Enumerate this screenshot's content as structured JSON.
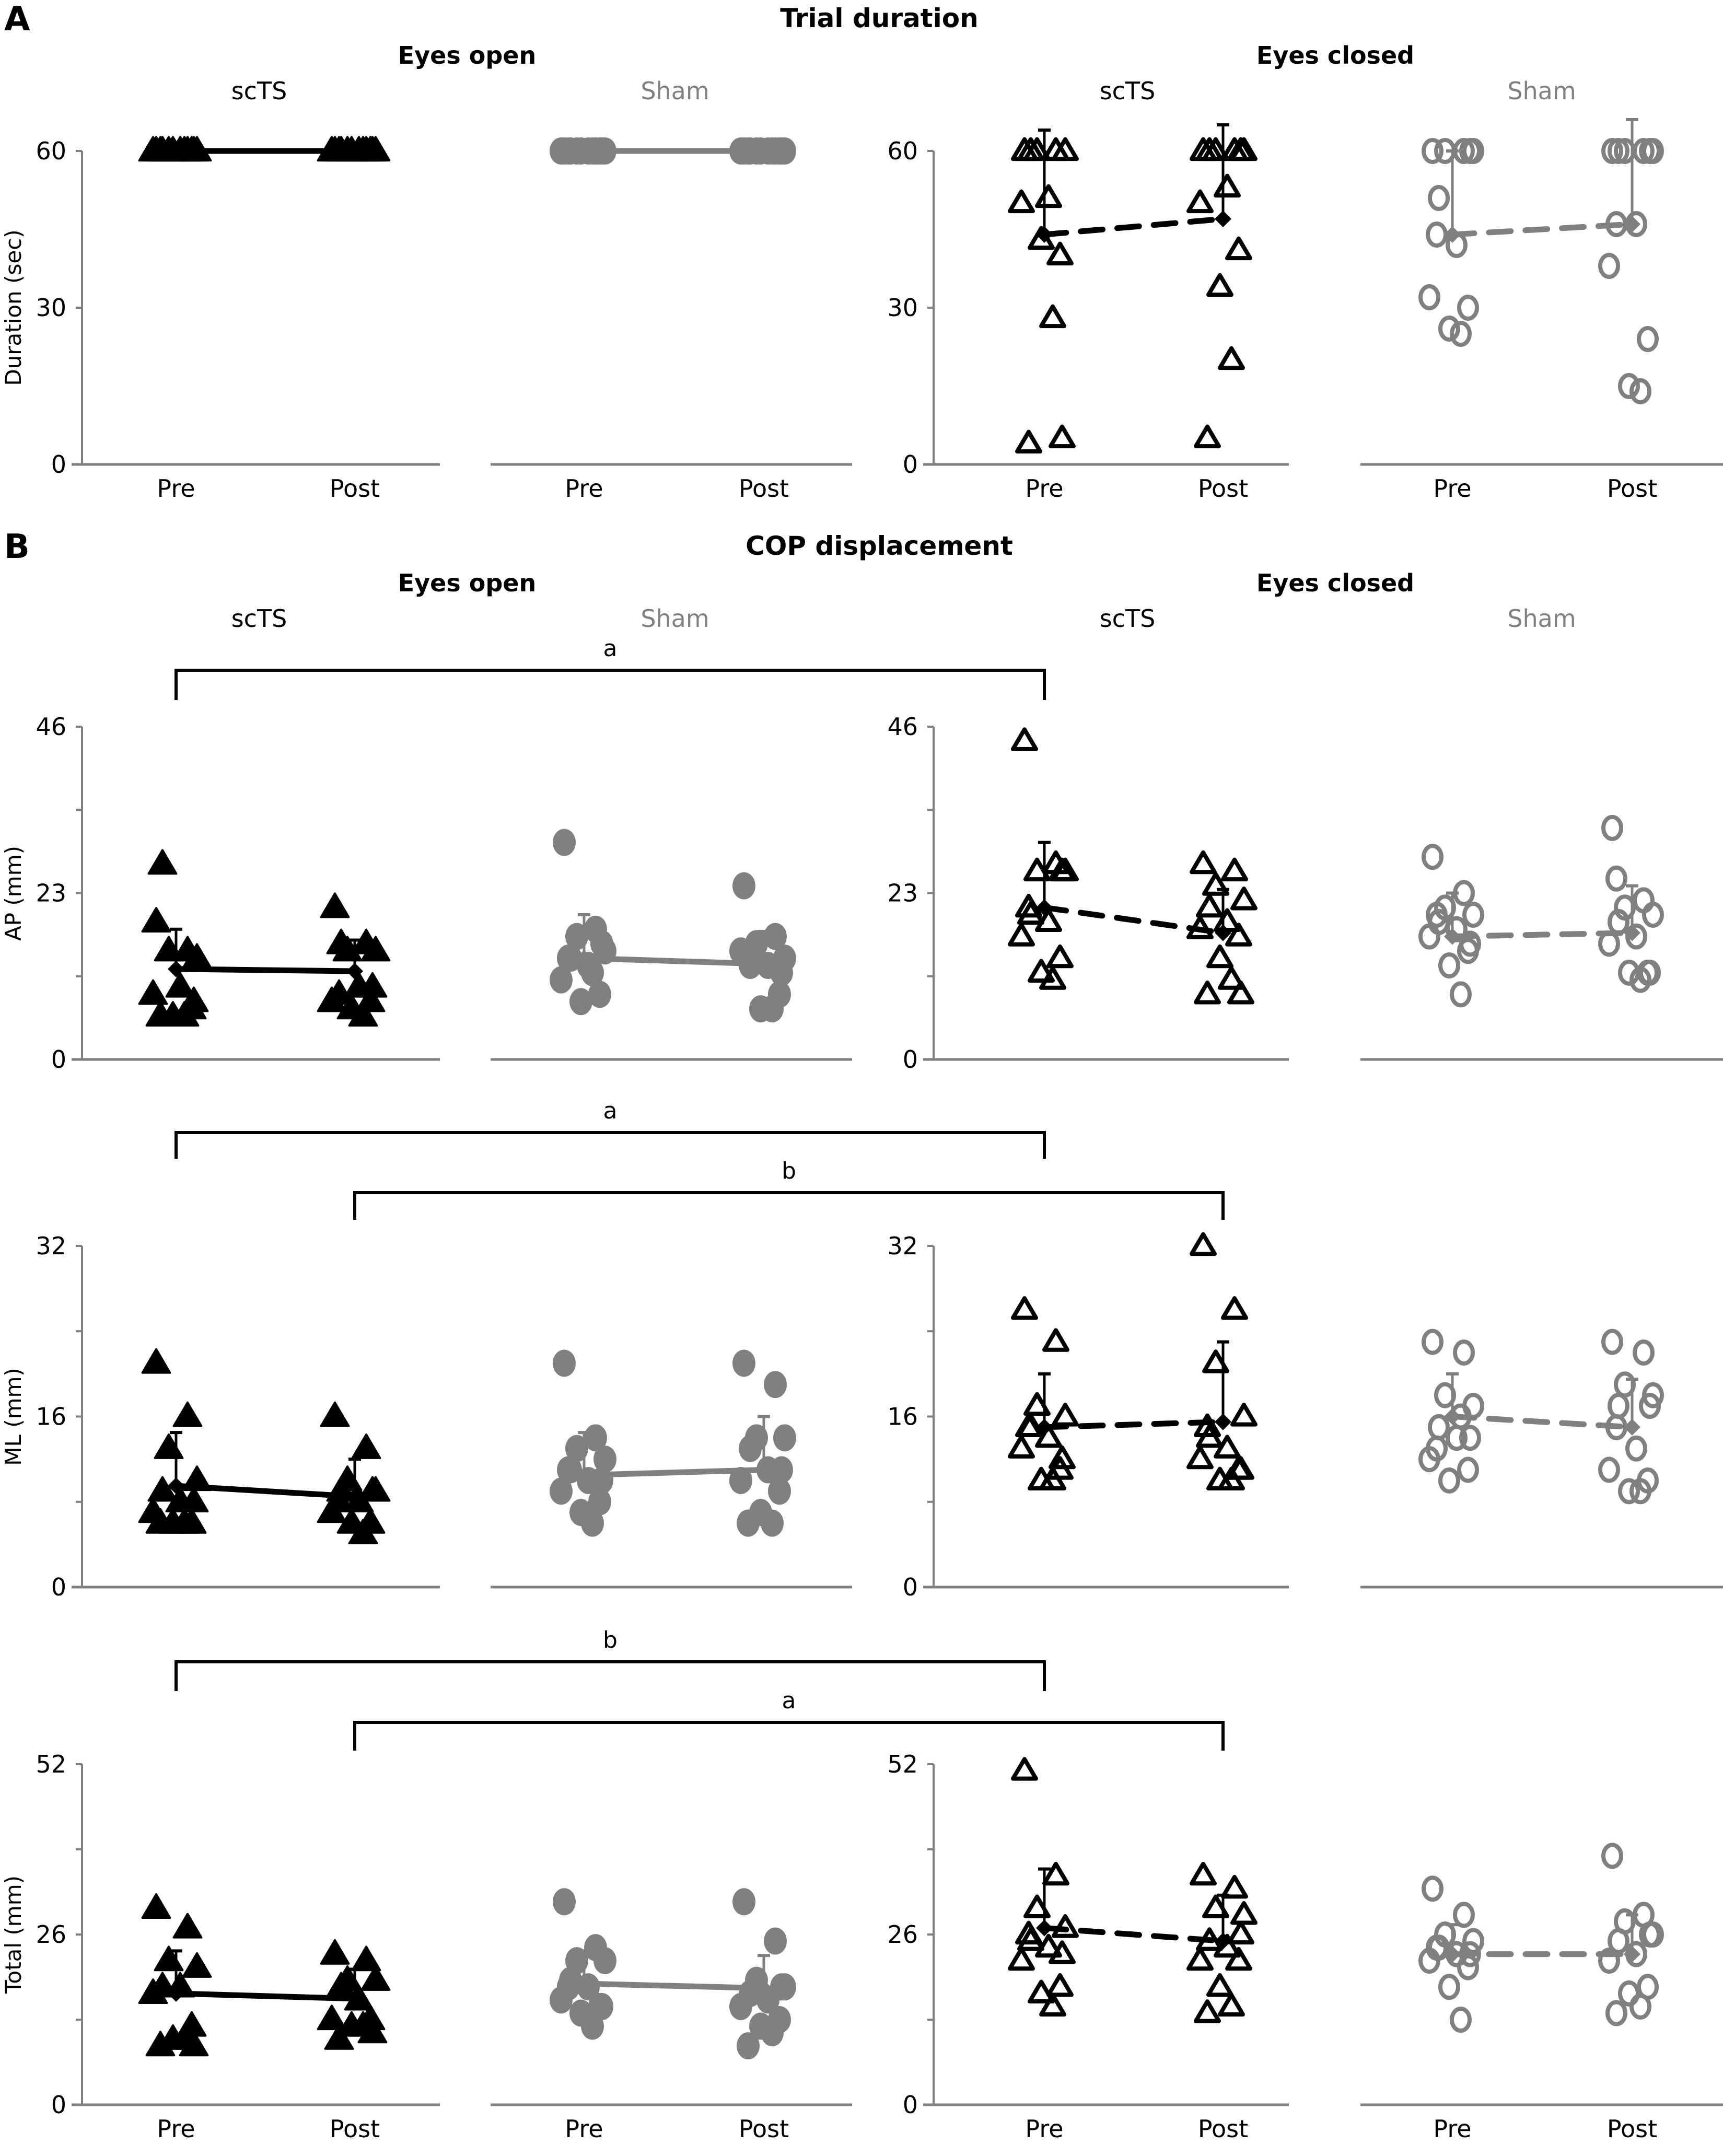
{
  "figure": {
    "panel_A_letter": "A",
    "panel_B_letter": "B",
    "panel_A_title": "Trial duration",
    "panel_B_title": "COP displacement",
    "conditions": [
      "Eyes open",
      "Eyes closed"
    ],
    "groups": [
      "scTS",
      "Sham",
      "scTS",
      "Sham"
    ],
    "colors": {
      "scTS": "#000000",
      "Sham": "#808080",
      "axis": "#808080"
    }
  },
  "chart_data": [
    {
      "id": "duration",
      "type": "scatter",
      "title": "Trial duration",
      "ylabel": "Duration (sec)",
      "ylim": [
        0,
        60
      ],
      "yticks": [
        0,
        30,
        60
      ],
      "yticklabels": [
        "0",
        "30",
        "60"
      ],
      "categories": [
        "Pre",
        "Post"
      ],
      "panels": [
        {
          "condition": "Eyes open",
          "group": "scTS",
          "marker": "filled-triangle",
          "line": "solid",
          "pre": [
            60,
            60,
            60,
            60,
            60,
            60,
            60,
            60,
            60,
            60,
            60,
            60
          ],
          "post": [
            60,
            60,
            60,
            60,
            60,
            60,
            60,
            60,
            60,
            60,
            60,
            60
          ],
          "mean": [
            60,
            60
          ],
          "sd": [
            0,
            0
          ]
        },
        {
          "condition": "Eyes open",
          "group": "Sham",
          "marker": "filled-circle",
          "line": "solid",
          "pre": [
            60,
            60,
            60,
            60,
            60,
            60,
            60,
            60,
            60,
            60,
            60,
            60
          ],
          "post": [
            60,
            60,
            60,
            60,
            60,
            60,
            60,
            60,
            60,
            60,
            60,
            60
          ],
          "mean": [
            60,
            60
          ],
          "sd": [
            0,
            0
          ]
        },
        {
          "condition": "Eyes closed",
          "group": "scTS",
          "marker": "open-triangle",
          "line": "dashed",
          "pre": [
            60,
            60,
            60,
            60,
            60,
            51,
            50,
            40,
            43,
            28,
            4,
            5
          ],
          "post": [
            60,
            60,
            60,
            60,
            60,
            53,
            50,
            41,
            34,
            20,
            5,
            60
          ],
          "mean": [
            44,
            47
          ],
          "sd": [
            20,
            18
          ]
        },
        {
          "condition": "Eyes closed",
          "group": "Sham",
          "marker": "open-circle",
          "line": "dashed",
          "pre": [
            60,
            60,
            60,
            60,
            51,
            42,
            32,
            30,
            26,
            25,
            44,
            60
          ],
          "post": [
            60,
            60,
            60,
            60,
            60,
            46,
            38,
            24,
            15,
            14,
            46,
            60
          ],
          "mean": [
            44,
            46
          ],
          "sd": [
            16,
            20
          ]
        }
      ]
    },
    {
      "id": "ap",
      "type": "scatter",
      "title": "COP displacement",
      "ylabel": "AP (mm)",
      "ylim": [
        0,
        46
      ],
      "yticks": [
        0,
        11.5,
        23,
        34.5,
        46
      ],
      "yticklabels": [
        "0",
        "",
        "23",
        "",
        "46"
      ],
      "categories": [
        "Pre",
        "Post"
      ],
      "panels": [
        {
          "condition": "Eyes open",
          "group": "scTS",
          "marker": "filled-triangle",
          "line": "solid",
          "pre": [
            19,
            15,
            15,
            14,
            27,
            10,
            9,
            7,
            6,
            6,
            6,
            8
          ],
          "post": [
            21,
            16,
            15,
            15,
            16,
            10,
            8,
            8,
            7,
            6,
            9,
            10
          ],
          "mean": [
            12.5,
            12.2
          ],
          "sd": [
            5.5,
            4.3
          ]
        },
        {
          "condition": "Eyes open",
          "group": "Sham",
          "marker": "filled-circle",
          "line": "solid",
          "pre": [
            30,
            18,
            17,
            15,
            14,
            13,
            11,
            9,
            8,
            12,
            14,
            16
          ],
          "post": [
            24,
            17,
            16,
            14,
            13,
            13,
            15,
            9,
            7,
            7,
            14,
            12
          ],
          "mean": [
            14,
            13.2
          ],
          "sd": [
            6,
            4.5
          ]
        },
        {
          "condition": "Eyes closed",
          "group": "scTS",
          "marker": "open-triangle",
          "line": "dashed",
          "pre": [
            44,
            27,
            26,
            26,
            20,
            19,
            17,
            14,
            12,
            11,
            21,
            26
          ],
          "post": [
            27,
            26,
            24,
            22,
            21,
            19,
            18,
            17,
            14,
            11,
            9,
            9
          ],
          "mean": [
            21,
            17.5
          ],
          "sd": [
            9,
            6
          ]
        },
        {
          "condition": "Eyes closed",
          "group": "Sham",
          "marker": "open-circle",
          "line": "dashed",
          "pre": [
            28,
            23,
            21,
            20,
            19,
            18,
            17,
            15,
            13,
            9,
            20,
            16
          ],
          "post": [
            32,
            22,
            21,
            20,
            19,
            17,
            16,
            12,
            12,
            11,
            25,
            12
          ],
          "mean": [
            17,
            17.5
          ],
          "sd": [
            6,
            6.5
          ]
        }
      ],
      "significance": [
        {
          "label": "a",
          "from": "Eyes open scTS Pre",
          "to": "Eyes closed scTS Pre"
        }
      ]
    },
    {
      "id": "ml",
      "type": "scatter",
      "ylabel": "ML (mm)",
      "ylim": [
        0,
        32
      ],
      "yticks": [
        0,
        8,
        16,
        24,
        32
      ],
      "yticklabels": [
        "0",
        "",
        "16",
        "",
        "32"
      ],
      "categories": [
        "Pre",
        "Post"
      ],
      "panels": [
        {
          "condition": "Eyes open",
          "group": "scTS",
          "marker": "filled-triangle",
          "line": "solid",
          "pre": [
            21,
            16,
            13,
            10,
            9,
            8,
            7,
            6,
            6,
            6,
            6,
            8
          ],
          "post": [
            16,
            13,
            10,
            9,
            9,
            8,
            7,
            6,
            6,
            5,
            8,
            9
          ],
          "mean": [
            9.5,
            8.5
          ],
          "sd": [
            5,
            3.5
          ]
        },
        {
          "condition": "Eyes open",
          "group": "Sham",
          "marker": "filled-circle",
          "line": "solid",
          "pre": [
            21,
            14,
            13,
            12,
            11,
            10,
            9,
            8,
            7,
            6,
            11,
            10
          ],
          "post": [
            21,
            19,
            14,
            14,
            13,
            11,
            10,
            9,
            7,
            6,
            6,
            11
          ],
          "mean": [
            10.5,
            11
          ],
          "sd": [
            4,
            5
          ]
        },
        {
          "condition": "Eyes closed",
          "group": "scTS",
          "marker": "open-triangle",
          "line": "dashed",
          "pre": [
            26,
            23,
            17,
            16,
            15,
            14,
            13,
            11,
            10,
            10,
            15,
            12
          ],
          "post": [
            32,
            26,
            21,
            16,
            14,
            13,
            12,
            11,
            10,
            10,
            15,
            11
          ],
          "mean": [
            15,
            15.5
          ],
          "sd": [
            5,
            7.5
          ]
        },
        {
          "condition": "Eyes closed",
          "group": "Sham",
          "marker": "open-circle",
          "line": "dashed",
          "pre": [
            23,
            22,
            18,
            17,
            15,
            14,
            12,
            11,
            10,
            16,
            13,
            14
          ],
          "post": [
            23,
            22,
            19,
            18,
            17,
            13,
            11,
            10,
            9,
            9,
            15,
            17
          ],
          "mean": [
            16,
            15
          ],
          "sd": [
            4,
            4.5
          ]
        }
      ],
      "significance": [
        {
          "label": "a",
          "from": "Eyes open scTS Pre",
          "to": "Eyes closed scTS Pre"
        },
        {
          "label": "b",
          "from": "Eyes open scTS Post",
          "to": "Eyes closed scTS Post"
        }
      ]
    },
    {
      "id": "total",
      "type": "scatter",
      "ylabel": "Total (mm)",
      "ylim": [
        0,
        52
      ],
      "yticks": [
        0,
        13,
        26,
        39,
        52
      ],
      "yticklabels": [
        "0",
        "",
        "26",
        "",
        "52"
      ],
      "categories": [
        "Pre",
        "Post"
      ],
      "panels": [
        {
          "condition": "Eyes open",
          "group": "scTS",
          "marker": "filled-triangle",
          "line": "solid",
          "pre": [
            30,
            27,
            22,
            21,
            18,
            18,
            17,
            12,
            10,
            10,
            9,
            9
          ],
          "post": [
            23,
            22,
            19,
            19,
            18,
            16,
            13,
            13,
            12,
            12,
            10,
            11
          ],
          "mean": [
            17,
            16.2
          ],
          "sd": [
            6.5,
            4.5
          ]
        },
        {
          "condition": "Eyes open",
          "group": "Sham",
          "marker": "filled-circle",
          "line": "solid",
          "pre": [
            31,
            24,
            22,
            22,
            19,
            18,
            16,
            15,
            14,
            12,
            18,
            15
          ],
          "post": [
            31,
            25,
            19,
            18,
            17,
            16,
            15,
            13,
            12,
            11,
            9,
            18
          ],
          "mean": [
            18.5,
            17.8
          ],
          "sd": [
            5,
            5
          ]
        },
        {
          "condition": "Eyes closed",
          "group": "scTS",
          "marker": "open-triangle",
          "line": "dashed",
          "pre": [
            51,
            35,
            30,
            27,
            25,
            24,
            22,
            18,
            17,
            15,
            26,
            23
          ],
          "post": [
            35,
            33,
            30,
            29,
            25,
            24,
            22,
            22,
            18,
            15,
            14,
            26
          ],
          "mean": [
            27,
            25
          ],
          "sd": [
            9,
            7
          ]
        },
        {
          "condition": "Eyes closed",
          "group": "Sham",
          "marker": "open-circle",
          "line": "dashed",
          "pre": [
            33,
            29,
            26,
            25,
            24,
            23,
            22,
            21,
            18,
            13,
            24,
            23
          ],
          "post": [
            38,
            29,
            28,
            26,
            25,
            23,
            22,
            18,
            17,
            15,
            14,
            26
          ],
          "mean": [
            23,
            23
          ],
          "sd": [
            4.5,
            6
          ]
        }
      ],
      "significance": [
        {
          "label": "b",
          "from": "Eyes open scTS Pre",
          "to": "Eyes closed scTS Pre"
        },
        {
          "label": "a",
          "from": "Eyes open scTS Post",
          "to": "Eyes closed scTS Post"
        }
      ]
    }
  ]
}
